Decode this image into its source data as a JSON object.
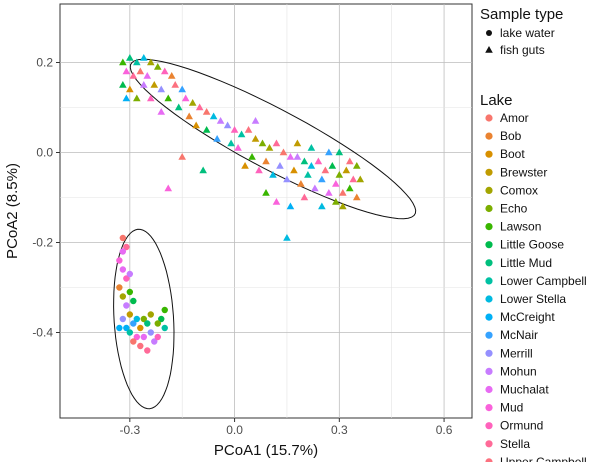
{
  "chart_data": {
    "type": "scatter",
    "title": "",
    "xlabel": "PCoA1 (15.7%)",
    "ylabel": "PCoA2 (8.5%)",
    "xlim": [
      -0.5,
      0.68
    ],
    "ylim": [
      -0.59,
      0.33
    ],
    "xticks": [
      -0.3,
      0.0,
      0.3,
      0.6
    ],
    "xtick_labels": [
      "-0.3",
      "0.0",
      "0.3",
      "0.6"
    ],
    "yticks": [
      0.2,
      0.0,
      -0.2,
      -0.4
    ],
    "ytick_labels": [
      "0.2",
      "0.0",
      "-0.2",
      "-0.4"
    ],
    "grid": true,
    "legend_position": "right",
    "shape_legend": {
      "title": "Sample type",
      "items": [
        {
          "label": "lake water",
          "shape": "circle"
        },
        {
          "label": "fish guts",
          "shape": "triangle"
        }
      ]
    },
    "color_legend": {
      "title": "Lake",
      "items": [
        {
          "label": "Amor",
          "color": "#f8766d"
        },
        {
          "label": "Bob",
          "color": "#ea8331"
        },
        {
          "label": "Boot",
          "color": "#d89000"
        },
        {
          "label": "Brewster",
          "color": "#c09b00"
        },
        {
          "label": "Comox",
          "color": "#a3a500"
        },
        {
          "label": "Echo",
          "color": "#7cae00"
        },
        {
          "label": "Lawson",
          "color": "#39b600"
        },
        {
          "label": "Little Goose",
          "color": "#00bb4e"
        },
        {
          "label": "Little Mud",
          "color": "#00bf7d"
        },
        {
          "label": "Lower Campbell",
          "color": "#00c1a3"
        },
        {
          "label": "Lower Stella",
          "color": "#00bae0"
        },
        {
          "label": "McCreight",
          "color": "#00b0f6"
        },
        {
          "label": "McNair",
          "color": "#35a2ff"
        },
        {
          "label": "Merrill",
          "color": "#9590ff"
        },
        {
          "label": "Mohun",
          "color": "#c77cff"
        },
        {
          "label": "Muchalat",
          "color": "#e76bf3"
        },
        {
          "label": "Mud",
          "color": "#fa62db"
        },
        {
          "label": "Ormund",
          "color": "#ff62bc"
        },
        {
          "label": "Stella",
          "color": "#ff6a98"
        },
        {
          "label": "Upper Campbell",
          "color": "#fc717f"
        }
      ]
    },
    "ellipses": [
      {
        "group": "fish guts",
        "center": [
          0.11,
          0.03
        ],
        "semi_axes": [
          0.44,
          0.07
        ],
        "angle_deg": -22
      },
      {
        "group": "lake water",
        "center": [
          -0.26,
          -0.37
        ],
        "semi_axes": [
          0.2,
          0.085
        ],
        "angle_deg": -85
      }
    ],
    "series": [
      {
        "sample_type": "lake water",
        "points": [
          [
            -0.32,
            -0.19,
            "Amor"
          ],
          [
            -0.31,
            -0.21,
            "Stella"
          ],
          [
            -0.33,
            -0.24,
            "Mud"
          ],
          [
            -0.32,
            -0.26,
            "Muchalat"
          ],
          [
            -0.31,
            -0.28,
            "Ormund"
          ],
          [
            -0.33,
            -0.3,
            "Bob"
          ],
          [
            -0.3,
            -0.31,
            "Lawson"
          ],
          [
            -0.32,
            -0.32,
            "Comox"
          ],
          [
            -0.29,
            -0.33,
            "Little Goose"
          ],
          [
            -0.31,
            -0.34,
            "Mohun"
          ],
          [
            -0.3,
            -0.36,
            "Brewster"
          ],
          [
            -0.32,
            -0.37,
            "Merrill"
          ],
          [
            -0.29,
            -0.38,
            "McNair"
          ],
          [
            -0.31,
            -0.39,
            "McCreight"
          ],
          [
            -0.28,
            -0.37,
            "Lower Stella"
          ],
          [
            -0.3,
            -0.4,
            "Lower Campbell"
          ],
          [
            -0.27,
            -0.39,
            "Boot"
          ],
          [
            -0.26,
            -0.37,
            "Echo"
          ],
          [
            -0.25,
            -0.38,
            "Little Mud"
          ],
          [
            -0.28,
            -0.41,
            "Mud"
          ],
          [
            -0.26,
            -0.41,
            "Muchalat"
          ],
          [
            -0.24,
            -0.4,
            "Merrill"
          ],
          [
            -0.23,
            -0.42,
            "Mohun"
          ],
          [
            -0.22,
            -0.41,
            "Ormund"
          ],
          [
            -0.2,
            -0.35,
            "Lawson"
          ],
          [
            -0.21,
            -0.37,
            "Little Goose"
          ],
          [
            -0.2,
            -0.39,
            "Lower Campbell"
          ],
          [
            -0.27,
            -0.43,
            "Upper Campbell"
          ],
          [
            -0.25,
            -0.44,
            "Stella"
          ],
          [
            -0.29,
            -0.42,
            "Amor"
          ],
          [
            -0.33,
            -0.39,
            "McCreight"
          ],
          [
            -0.24,
            -0.36,
            "Comox"
          ],
          [
            -0.22,
            -0.38,
            "Echo"
          ],
          [
            -0.3,
            -0.27,
            "Mohun"
          ],
          [
            -0.32,
            -0.22,
            "Muchalat"
          ]
        ]
      },
      {
        "sample_type": "fish guts",
        "points": [
          [
            -0.32,
            0.2,
            "Lawson"
          ],
          [
            -0.3,
            0.21,
            "Little Mud"
          ],
          [
            -0.28,
            0.2,
            "Lower Campbell"
          ],
          [
            -0.26,
            0.21,
            "Lower Stella"
          ],
          [
            -0.24,
            0.2,
            "Comox"
          ],
          [
            -0.22,
            0.19,
            "Echo"
          ],
          [
            -0.31,
            0.18,
            "Mud"
          ],
          [
            -0.29,
            0.17,
            "Stella"
          ],
          [
            -0.27,
            0.18,
            "Amor"
          ],
          [
            -0.25,
            0.17,
            "Muchalat"
          ],
          [
            -0.2,
            0.18,
            "Ormund"
          ],
          [
            -0.18,
            0.17,
            "Bob"
          ],
          [
            -0.32,
            0.15,
            "Little Goose"
          ],
          [
            -0.3,
            0.14,
            "Boot"
          ],
          [
            -0.26,
            0.15,
            "Mohun"
          ],
          [
            -0.23,
            0.15,
            "Brewster"
          ],
          [
            -0.21,
            0.14,
            "Merrill"
          ],
          [
            -0.17,
            0.15,
            "Upper Campbell"
          ],
          [
            -0.15,
            0.14,
            "McNair"
          ],
          [
            -0.28,
            0.12,
            "Echo"
          ],
          [
            -0.24,
            0.12,
            "Ormund"
          ],
          [
            -0.19,
            0.12,
            "Lawson"
          ],
          [
            -0.14,
            0.12,
            "Mud"
          ],
          [
            -0.12,
            0.11,
            "Comox"
          ],
          [
            -0.31,
            0.12,
            "McCreight"
          ],
          [
            -0.16,
            0.1,
            "Little Mud"
          ],
          [
            -0.1,
            0.1,
            "Stella"
          ],
          [
            -0.08,
            0.09,
            "Amor"
          ],
          [
            -0.21,
            0.09,
            "Muchalat"
          ],
          [
            -0.13,
            0.08,
            "Bob"
          ],
          [
            -0.06,
            0.08,
            "Lower Stella"
          ],
          [
            -0.04,
            0.07,
            "Mohun"
          ],
          [
            -0.11,
            0.06,
            "Boot"
          ],
          [
            -0.02,
            0.06,
            "Merrill"
          ],
          [
            0.0,
            0.05,
            "Ormund"
          ],
          [
            -0.08,
            0.05,
            "Little Goose"
          ],
          [
            0.02,
            0.04,
            "Lower Campbell"
          ],
          [
            0.04,
            0.05,
            "Upper Campbell"
          ],
          [
            -0.05,
            0.03,
            "McNair"
          ],
          [
            0.06,
            0.03,
            "Brewster"
          ],
          [
            0.08,
            0.02,
            "Echo"
          ],
          [
            0.01,
            0.01,
            "Mud"
          ],
          [
            0.1,
            0.01,
            "Comox"
          ],
          [
            0.12,
            0.02,
            "Stella"
          ],
          [
            0.05,
            -0.01,
            "Lawson"
          ],
          [
            0.14,
            0.0,
            "Amor"
          ],
          [
            0.16,
            -0.01,
            "Muchalat"
          ],
          [
            0.09,
            -0.02,
            "Bob"
          ],
          [
            0.18,
            -0.01,
            "Mohun"
          ],
          [
            0.2,
            -0.02,
            "Little Mud"
          ],
          [
            0.13,
            -0.03,
            "Merrill"
          ],
          [
            0.22,
            -0.03,
            "Lower Stella"
          ],
          [
            0.24,
            -0.02,
            "Ormund"
          ],
          [
            0.17,
            -0.04,
            "Boot"
          ],
          [
            0.26,
            -0.04,
            "Upper Campbell"
          ],
          [
            0.28,
            -0.03,
            "Little Goose"
          ],
          [
            0.21,
            -0.05,
            "Lower Campbell"
          ],
          [
            0.3,
            -0.05,
            "Echo"
          ],
          [
            0.32,
            -0.04,
            "Brewster"
          ],
          [
            0.25,
            -0.06,
            "McNair"
          ],
          [
            0.34,
            -0.06,
            "Stella"
          ],
          [
            0.29,
            -0.07,
            "Mud"
          ],
          [
            0.36,
            -0.06,
            "Comox"
          ],
          [
            0.33,
            -0.08,
            "Lawson"
          ],
          [
            0.31,
            -0.09,
            "Amor"
          ],
          [
            0.27,
            -0.09,
            "Muchalat"
          ],
          [
            0.23,
            -0.08,
            "Mohun"
          ],
          [
            0.19,
            -0.07,
            "Bob"
          ],
          [
            0.15,
            -0.06,
            "Merrill"
          ],
          [
            0.11,
            -0.05,
            "Lower Stella"
          ],
          [
            0.07,
            -0.04,
            "Ormund"
          ],
          [
            0.03,
            -0.03,
            "Boot"
          ],
          [
            0.3,
            0.0,
            "Little Mud"
          ],
          [
            0.33,
            -0.02,
            "Upper Campbell"
          ],
          [
            0.35,
            -0.03,
            "Echo"
          ],
          [
            0.27,
            0.0,
            "McNair"
          ],
          [
            0.22,
            0.01,
            "Lower Campbell"
          ],
          [
            0.18,
            0.02,
            "Brewster"
          ],
          [
            0.29,
            -0.11,
            "Echo"
          ],
          [
            0.25,
            -0.12,
            "Lower Stella"
          ],
          [
            0.2,
            -0.1,
            "Stella"
          ],
          [
            0.16,
            -0.12,
            "McCreight"
          ],
          [
            0.12,
            -0.11,
            "Mud"
          ],
          [
            0.09,
            -0.09,
            "Lawson"
          ],
          [
            0.31,
            -0.12,
            "Comox"
          ],
          [
            0.35,
            -0.1,
            "Bob"
          ],
          [
            -0.19,
            -0.08,
            "Mud"
          ],
          [
            -0.09,
            -0.04,
            "Little Mud"
          ],
          [
            0.15,
            -0.19,
            "Lower Stella"
          ],
          [
            -0.15,
            -0.01,
            "Amor"
          ],
          [
            0.06,
            0.07,
            "Mohun"
          ],
          [
            -0.01,
            0.02,
            "Lower Campbell"
          ]
        ]
      }
    ]
  }
}
